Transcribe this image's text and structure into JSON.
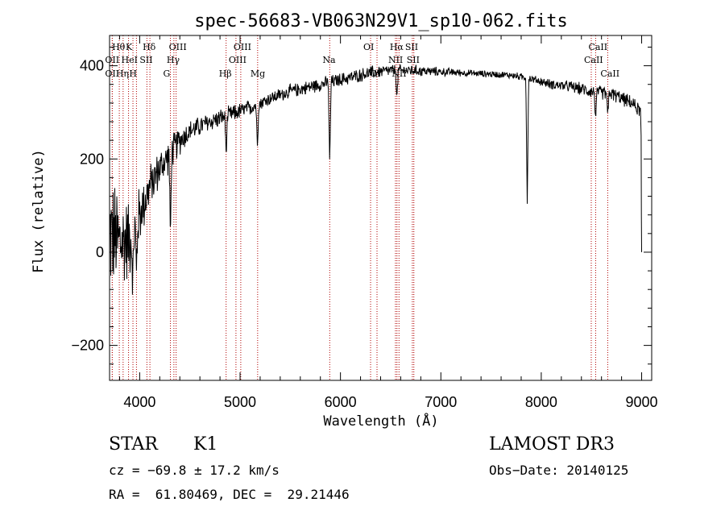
{
  "chart_data": {
    "type": "line",
    "title": "spec-56683-VB063N29V1_sp10-062.fits",
    "xlabel": "Wavelength (Å)",
    "ylabel": "Flux (relative)",
    "xlim": [
      3700,
      9100
    ],
    "ylim": [
      -275,
      465
    ],
    "xticks": [
      4000,
      5000,
      6000,
      7000,
      8000,
      9000
    ],
    "yticks": [
      -200,
      0,
      200,
      400
    ],
    "x_minor_step": 200,
    "y_minor_step": 40,
    "grid": false,
    "series": [
      {
        "name": "spectrum",
        "continuum": {
          "x": [
            3700,
            3800,
            3900,
            4000,
            4100,
            4200,
            4300,
            4400,
            4500,
            4700,
            4900,
            5100,
            5300,
            5500,
            5700,
            5900,
            6100,
            6300,
            6500,
            6700,
            6900,
            7100,
            7300,
            7500,
            7700,
            7900,
            8100,
            8300,
            8500,
            8700,
            8900,
            9000
          ],
          "y": [
            40,
            20,
            30,
            80,
            140,
            180,
            210,
            240,
            260,
            280,
            295,
            310,
            330,
            345,
            355,
            365,
            375,
            385,
            390,
            390,
            388,
            386,
            384,
            382,
            380,
            372,
            360,
            355,
            345,
            340,
            320,
            300
          ],
          "noise": [
            120,
            110,
            80,
            60,
            45,
            40,
            35,
            30,
            22,
            20,
            18,
            16,
            14,
            14,
            14,
            14,
            14,
            14,
            12,
            12,
            10,
            8,
            7,
            7,
            7,
            8,
            10,
            12,
            14,
            14,
            14,
            14
          ]
        },
        "features": [
          {
            "x": 3933,
            "depth": 120
          },
          {
            "x": 3968,
            "depth": 110
          },
          {
            "x": 4306,
            "depth": 180
          },
          {
            "x": 4861,
            "depth": 80
          },
          {
            "x": 5172,
            "depth": 90
          },
          {
            "x": 5893,
            "depth": 180
          },
          {
            "x": 6563,
            "depth": 60
          },
          {
            "x": 7860,
            "depth": 270
          },
          {
            "x": 8542,
            "depth": 60
          },
          {
            "x": 8662,
            "depth": 50
          }
        ],
        "end": [
          {
            "x": 8995,
            "y": 250
          },
          {
            "x": 8997,
            "y": 80
          },
          {
            "x": 9000,
            "y": 0
          }
        ]
      }
    ],
    "lines": [
      {
        "label": "OII",
        "x": 3727,
        "row": 3
      },
      {
        "label": "Hθ",
        "x": 3797,
        "row": 1
      },
      {
        "label": "OII",
        "x": 3727,
        "row": 2
      },
      {
        "label": "Hη",
        "x": 3835,
        "row": 3
      },
      {
        "label": "HeI",
        "x": 3889,
        "row": 2
      },
      {
        "label": "K",
        "x": 3933,
        "row": 1
      },
      {
        "label": "H",
        "x": 3968,
        "row": 3
      },
      {
        "label": "SII",
        "x": 4072,
        "row": 2
      },
      {
        "label": "Hδ",
        "x": 4102,
        "row": 1
      },
      {
        "label": "G",
        "x": 4306,
        "row": 3
      },
      {
        "label": "Hγ",
        "x": 4341,
        "row": 2
      },
      {
        "label": "OIII",
        "x": 4363,
        "row": 1
      },
      {
        "label": "Hβ",
        "x": 4861,
        "row": 3
      },
      {
        "label": "OIII",
        "x": 4959,
        "row": 2
      },
      {
        "label": "OIII",
        "x": 5007,
        "row": 1
      },
      {
        "label": "Mg",
        "x": 5175,
        "row": 3
      },
      {
        "label": "Na",
        "x": 5893,
        "row": 2
      },
      {
        "label": "OI",
        "x": 6300,
        "row": 1
      },
      {
        "label": "OI",
        "x": 6364,
        "row": 3
      },
      {
        "label": "NII",
        "x": 6548,
        "row": 2
      },
      {
        "label": "Hα",
        "x": 6563,
        "row": 1
      },
      {
        "label": "NII",
        "x": 6583,
        "row": 3
      },
      {
        "label": "SII",
        "x": 6716,
        "row": 1
      },
      {
        "label": "SII",
        "x": 6731,
        "row": 2
      },
      {
        "label": "CaII",
        "x": 8498,
        "row": 2
      },
      {
        "label": "CaII",
        "x": 8542,
        "row": 1
      },
      {
        "label": "CaII",
        "x": 8662,
        "row": 3
      }
    ]
  },
  "info": {
    "object_type": "STAR",
    "subclass": "K1",
    "survey": "LAMOST DR3",
    "redshift": "cz = −69.8 ± 17.2 km/s",
    "obs_date": "Obs−Date: 20140125",
    "coords": "RA =  61.80469, DEC =  29.21446"
  }
}
